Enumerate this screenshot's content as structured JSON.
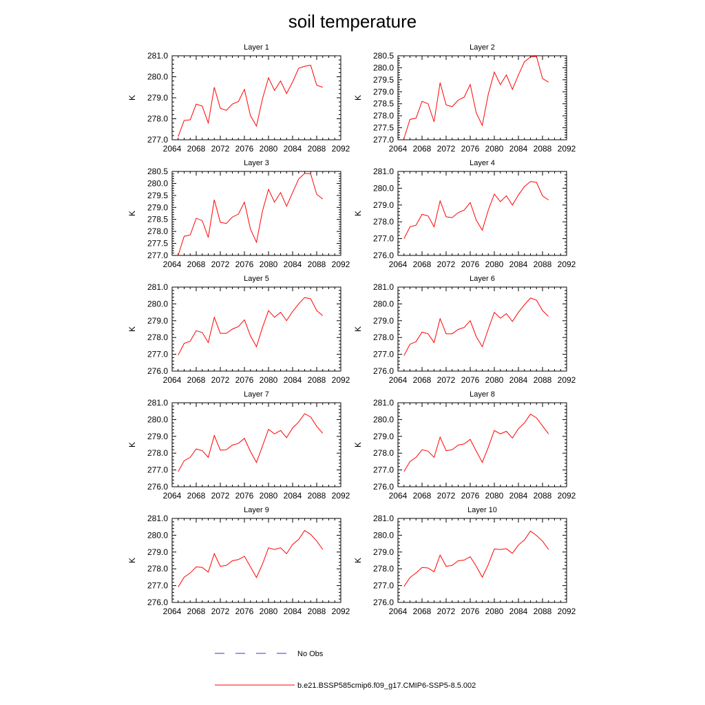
{
  "page_title": "soil temperature",
  "colors": {
    "series": "#ff0000",
    "obs": "#3333cc",
    "axes": "#000000"
  },
  "legend": {
    "obs_label": "No Obs",
    "model_label": "b.e21.BSSP585cmip6.f09_g17.CMIP6-SSP5-8.5.002"
  },
  "chart_data": [
    {
      "type": "line",
      "title": "Layer 1",
      "xlabel": "",
      "ylabel": "K",
      "xlim": [
        2064,
        2092
      ],
      "ylim": [
        277.0,
        281.0
      ],
      "xticks": [
        2064,
        2068,
        2072,
        2076,
        2080,
        2084,
        2088,
        2092
      ],
      "yticks": [
        "277.0",
        "278.0",
        "279.0",
        "280.0",
        "281.0"
      ],
      "x": [
        2065,
        2066,
        2067,
        2068,
        2069,
        2070,
        2071,
        2072,
        2073,
        2074,
        2075,
        2076,
        2077,
        2078,
        2079,
        2080,
        2081,
        2082,
        2083,
        2084,
        2085,
        2086,
        2087,
        2088,
        2089
      ],
      "values": [
        277.15,
        277.92,
        277.95,
        278.7,
        278.6,
        277.8,
        279.5,
        278.5,
        278.4,
        278.7,
        278.82,
        279.4,
        278.15,
        277.65,
        278.95,
        279.95,
        279.35,
        279.8,
        279.2,
        279.75,
        280.4,
        280.5,
        280.55,
        279.6,
        279.5
      ],
      "grid": false,
      "legend": "bottom"
    },
    {
      "type": "line",
      "title": "Layer 2",
      "xlabel": "",
      "ylabel": "K",
      "xlim": [
        2064,
        2092
      ],
      "ylim": [
        277.0,
        280.5
      ],
      "xticks": [
        2064,
        2068,
        2072,
        2076,
        2080,
        2084,
        2088,
        2092
      ],
      "yticks": [
        "277.0",
        "277.5",
        "278.0",
        "278.5",
        "279.0",
        "279.5",
        "280.0",
        "280.5"
      ],
      "x": [
        2065,
        2066,
        2067,
        2068,
        2069,
        2070,
        2071,
        2072,
        2073,
        2074,
        2075,
        2076,
        2077,
        2078,
        2079,
        2080,
        2081,
        2082,
        2083,
        2084,
        2085,
        2086,
        2087,
        2088,
        2089
      ],
      "values": [
        277.05,
        277.85,
        277.9,
        278.6,
        278.5,
        277.75,
        279.38,
        278.45,
        278.38,
        278.65,
        278.78,
        279.3,
        278.12,
        277.6,
        278.9,
        279.82,
        279.3,
        279.7,
        279.1,
        279.7,
        280.25,
        280.45,
        280.48,
        279.55,
        279.4
      ],
      "grid": false,
      "legend": "bottom"
    },
    {
      "type": "line",
      "title": "Layer 3",
      "xlabel": "",
      "ylabel": "K",
      "xlim": [
        2064,
        2092
      ],
      "ylim": [
        277.0,
        280.5
      ],
      "xticks": [
        2064,
        2068,
        2072,
        2076,
        2080,
        2084,
        2088,
        2092
      ],
      "yticks": [
        "277.0",
        "277.5",
        "278.0",
        "278.5",
        "279.0",
        "279.5",
        "280.0",
        "280.5"
      ],
      "x": [
        2065,
        2066,
        2067,
        2068,
        2069,
        2070,
        2071,
        2072,
        2073,
        2074,
        2075,
        2076,
        2077,
        2078,
        2079,
        2080,
        2081,
        2082,
        2083,
        2084,
        2085,
        2086,
        2087,
        2088,
        2089
      ],
      "values": [
        277.0,
        277.8,
        277.85,
        278.55,
        278.45,
        277.75,
        279.32,
        278.38,
        278.33,
        278.6,
        278.72,
        279.22,
        278.1,
        277.55,
        278.85,
        279.75,
        279.22,
        279.62,
        279.05,
        279.62,
        280.18,
        280.42,
        280.4,
        279.55,
        279.35
      ],
      "grid": false,
      "legend": "bottom"
    },
    {
      "type": "line",
      "title": "Layer 4",
      "xlabel": "",
      "ylabel": "K",
      "xlim": [
        2064,
        2092
      ],
      "ylim": [
        276.0,
        281.0
      ],
      "xticks": [
        2064,
        2068,
        2072,
        2076,
        2080,
        2084,
        2088,
        2092
      ],
      "yticks": [
        "276.0",
        "277.0",
        "278.0",
        "279.0",
        "280.0",
        "281.0"
      ],
      "x": [
        2065,
        2066,
        2067,
        2068,
        2069,
        2070,
        2071,
        2072,
        2073,
        2074,
        2075,
        2076,
        2077,
        2078,
        2079,
        2080,
        2081,
        2082,
        2083,
        2084,
        2085,
        2086,
        2087,
        2088,
        2089
      ],
      "values": [
        277.0,
        277.7,
        277.8,
        278.45,
        278.35,
        277.7,
        279.25,
        278.3,
        278.25,
        278.55,
        278.7,
        279.15,
        278.1,
        277.5,
        278.7,
        279.65,
        279.2,
        279.55,
        279.0,
        279.6,
        280.1,
        280.4,
        280.35,
        279.55,
        279.3
      ],
      "grid": false,
      "legend": "bottom"
    },
    {
      "type": "line",
      "title": "Layer 5",
      "xlabel": "",
      "ylabel": "K",
      "xlim": [
        2064,
        2092
      ],
      "ylim": [
        276.0,
        281.0
      ],
      "xticks": [
        2064,
        2068,
        2072,
        2076,
        2080,
        2084,
        2088,
        2092
      ],
      "yticks": [
        "276.0",
        "277.0",
        "278.0",
        "279.0",
        "280.0",
        "281.0"
      ],
      "x": [
        2065,
        2066,
        2067,
        2068,
        2069,
        2070,
        2071,
        2072,
        2073,
        2074,
        2075,
        2076,
        2077,
        2078,
        2079,
        2080,
        2081,
        2082,
        2083,
        2084,
        2085,
        2086,
        2087,
        2088,
        2089
      ],
      "values": [
        276.95,
        277.65,
        277.78,
        278.4,
        278.3,
        277.7,
        279.2,
        278.25,
        278.25,
        278.5,
        278.65,
        279.05,
        278.1,
        277.45,
        278.6,
        279.6,
        279.2,
        279.5,
        279.0,
        279.55,
        280.0,
        280.38,
        280.3,
        279.6,
        279.3
      ],
      "grid": false,
      "legend": "bottom"
    },
    {
      "type": "line",
      "title": "Layer 6",
      "xlabel": "",
      "ylabel": "K",
      "xlim": [
        2064,
        2092
      ],
      "ylim": [
        276.0,
        281.0
      ],
      "xticks": [
        2064,
        2068,
        2072,
        2076,
        2080,
        2084,
        2088,
        2092
      ],
      "yticks": [
        "276.0",
        "277.0",
        "278.0",
        "279.0",
        "280.0",
        "281.0"
      ],
      "x": [
        2065,
        2066,
        2067,
        2068,
        2069,
        2070,
        2071,
        2072,
        2073,
        2074,
        2075,
        2076,
        2077,
        2078,
        2079,
        2080,
        2081,
        2082,
        2083,
        2084,
        2085,
        2086,
        2087,
        2088,
        2089
      ],
      "values": [
        276.92,
        277.6,
        277.75,
        278.32,
        278.22,
        277.7,
        279.12,
        278.22,
        278.22,
        278.48,
        278.6,
        279.0,
        278.05,
        277.45,
        278.5,
        279.5,
        279.15,
        279.42,
        278.95,
        279.5,
        279.95,
        280.35,
        280.22,
        279.6,
        279.25
      ],
      "grid": false,
      "legend": "bottom"
    },
    {
      "type": "line",
      "title": "Layer 7",
      "xlabel": "",
      "ylabel": "K",
      "xlim": [
        2064,
        2092
      ],
      "ylim": [
        276.0,
        281.0
      ],
      "xticks": [
        2064,
        2068,
        2072,
        2076,
        2080,
        2084,
        2088,
        2092
      ],
      "yticks": [
        "276.0",
        "277.0",
        "278.0",
        "279.0",
        "280.0",
        "281.0"
      ],
      "x": [
        2065,
        2066,
        2067,
        2068,
        2069,
        2070,
        2071,
        2072,
        2073,
        2074,
        2075,
        2076,
        2077,
        2078,
        2079,
        2080,
        2081,
        2082,
        2083,
        2084,
        2085,
        2086,
        2087,
        2088,
        2089
      ],
      "values": [
        276.9,
        277.55,
        277.75,
        278.25,
        278.15,
        277.75,
        279.05,
        278.18,
        278.2,
        278.48,
        278.58,
        278.88,
        278.1,
        277.45,
        278.42,
        279.42,
        279.15,
        279.35,
        278.92,
        279.5,
        279.85,
        280.35,
        280.15,
        279.6,
        279.18
      ],
      "grid": false,
      "legend": "bottom"
    },
    {
      "type": "line",
      "title": "Layer 8",
      "xlabel": "",
      "ylabel": "K",
      "xlim": [
        2064,
        2092
      ],
      "ylim": [
        276.0,
        281.0
      ],
      "xticks": [
        2064,
        2068,
        2072,
        2076,
        2080,
        2084,
        2088,
        2092
      ],
      "yticks": [
        "276.0",
        "277.0",
        "278.0",
        "279.0",
        "280.0",
        "281.0"
      ],
      "x": [
        2065,
        2066,
        2067,
        2068,
        2069,
        2070,
        2071,
        2072,
        2073,
        2074,
        2075,
        2076,
        2077,
        2078,
        2079,
        2080,
        2081,
        2082,
        2083,
        2084,
        2085,
        2086,
        2087,
        2088,
        2089
      ],
      "values": [
        276.9,
        277.5,
        277.75,
        278.2,
        278.12,
        277.75,
        278.95,
        278.15,
        278.2,
        278.48,
        278.55,
        278.82,
        278.12,
        277.45,
        278.35,
        279.35,
        279.15,
        279.3,
        278.9,
        279.45,
        279.8,
        280.32,
        280.1,
        279.62,
        279.15
      ],
      "grid": false,
      "legend": "bottom"
    },
    {
      "type": "line",
      "title": "Layer 9",
      "xlabel": "",
      "ylabel": "K",
      "xlim": [
        2064,
        2092
      ],
      "ylim": [
        276.0,
        281.0
      ],
      "xticks": [
        2064,
        2068,
        2072,
        2076,
        2080,
        2084,
        2088,
        2092
      ],
      "yticks": [
        "276.0",
        "277.0",
        "278.0",
        "279.0",
        "280.0",
        "281.0"
      ],
      "x": [
        2065,
        2066,
        2067,
        2068,
        2069,
        2070,
        2071,
        2072,
        2073,
        2074,
        2075,
        2076,
        2077,
        2078,
        2079,
        2080,
        2081,
        2082,
        2083,
        2084,
        2085,
        2086,
        2087,
        2088,
        2089
      ],
      "values": [
        276.92,
        277.5,
        277.75,
        278.12,
        278.08,
        277.8,
        278.9,
        278.15,
        278.2,
        278.48,
        278.55,
        278.75,
        278.12,
        277.48,
        278.28,
        279.25,
        279.15,
        279.25,
        278.9,
        279.45,
        279.75,
        280.28,
        280.05,
        279.65,
        279.15
      ],
      "grid": false,
      "legend": "bottom"
    },
    {
      "type": "line",
      "title": "Layer 10",
      "xlabel": "",
      "ylabel": "K",
      "xlim": [
        2064,
        2092
      ],
      "ylim": [
        276.0,
        281.0
      ],
      "xticks": [
        2064,
        2068,
        2072,
        2076,
        2080,
        2084,
        2088,
        2092
      ],
      "yticks": [
        "276.0",
        "277.0",
        "278.0",
        "279.0",
        "280.0",
        "281.0"
      ],
      "x": [
        2065,
        2066,
        2067,
        2068,
        2069,
        2070,
        2071,
        2072,
        2073,
        2074,
        2075,
        2076,
        2077,
        2078,
        2079,
        2080,
        2081,
        2082,
        2083,
        2084,
        2085,
        2086,
        2087,
        2088,
        2089
      ],
      "values": [
        276.95,
        277.48,
        277.75,
        278.08,
        278.05,
        277.82,
        278.82,
        278.15,
        278.2,
        278.48,
        278.52,
        278.72,
        278.15,
        277.5,
        278.25,
        279.18,
        279.15,
        279.2,
        278.92,
        279.42,
        279.72,
        280.25,
        279.98,
        279.65,
        279.15
      ],
      "grid": false,
      "legend": "bottom"
    }
  ]
}
